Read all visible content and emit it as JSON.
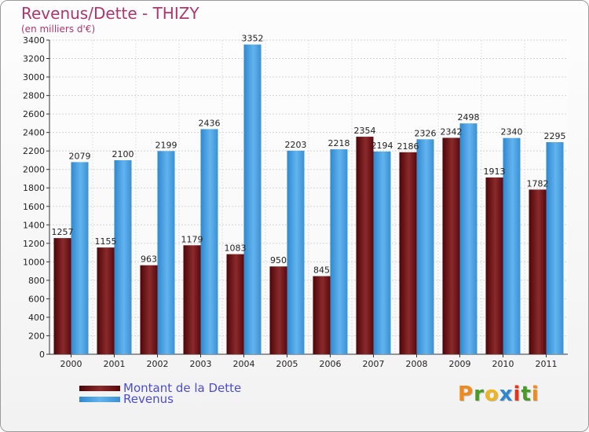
{
  "colors": {
    "debt": "#6b0f12",
    "revenue": "#4aa3e6",
    "title": "#b3346b",
    "legend_text": "#4b4bd6"
  },
  "chart_data": {
    "type": "bar",
    "title": "Revenus/Dette - THIZY",
    "subtitle": "(en milliers d'€)",
    "xlabel": "",
    "ylabel": "",
    "ylim": [
      0,
      3400
    ],
    "ytick_step": 200,
    "categories": [
      "2000",
      "2001",
      "2002",
      "2003",
      "2004",
      "2005",
      "2006",
      "2007",
      "2008",
      "2009",
      "2010",
      "2011"
    ],
    "series": [
      {
        "name": "Montant de la Dette",
        "key": "debt",
        "values": [
          1257,
          1155,
          963,
          1179,
          1083,
          950,
          845,
          2354,
          2186,
          2342,
          1913,
          1782
        ]
      },
      {
        "name": "Revenus",
        "key": "revenue",
        "values": [
          2079,
          2100,
          2199,
          2436,
          3352,
          2203,
          2218,
          2194,
          2326,
          2498,
          2340,
          2295
        ]
      }
    ]
  },
  "logo": {
    "text": "Proxiti"
  }
}
